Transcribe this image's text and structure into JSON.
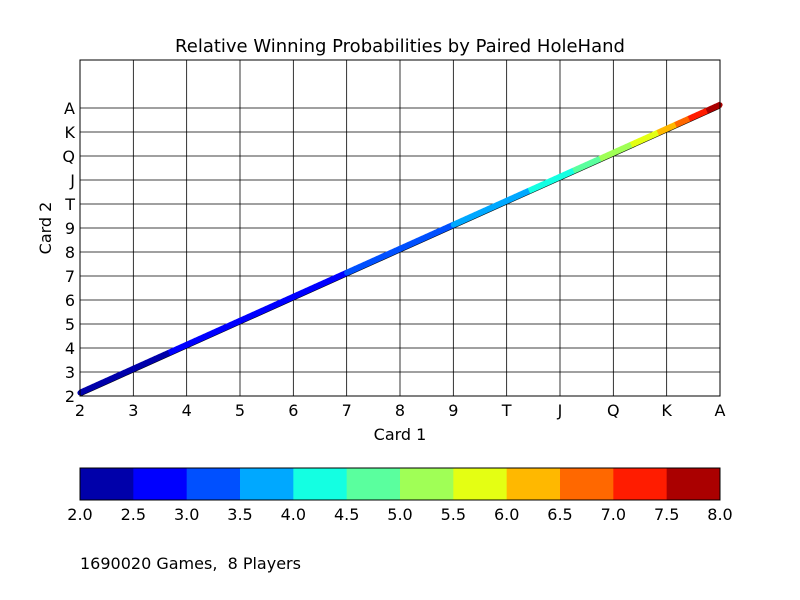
{
  "chart_data": {
    "type": "line",
    "title": "Relative Winning Probabilities by Paired HoleHand",
    "xlabel": "Card 1",
    "ylabel": "Card 2",
    "x_ticks": [
      "2",
      "3",
      "4",
      "5",
      "6",
      "7",
      "8",
      "9",
      "T",
      "J",
      "Q",
      "K",
      "A"
    ],
    "y_ticks": [
      "2",
      "3",
      "4",
      "5",
      "6",
      "7",
      "8",
      "9",
      "T",
      "J",
      "Q",
      "K",
      "A"
    ],
    "grid": true,
    "series": [
      {
        "points": [
          {
            "x": "2",
            "y": "2",
            "value": 2.0
          },
          {
            "x": "3",
            "y": "3",
            "value": 2.3
          },
          {
            "x": "4",
            "y": "4",
            "value": 2.6
          },
          {
            "x": "5",
            "y": "5",
            "value": 2.8
          },
          {
            "x": "6",
            "y": "6",
            "value": 2.9
          },
          {
            "x": "7",
            "y": "7",
            "value": 3.0
          },
          {
            "x": "8",
            "y": "8",
            "value": 3.2
          },
          {
            "x": "9",
            "y": "9",
            "value": 3.5
          },
          {
            "x": "T",
            "y": "T",
            "value": 3.8
          },
          {
            "x": "J",
            "y": "J",
            "value": 4.3
          },
          {
            "x": "Q",
            "y": "Q",
            "value": 5.2
          },
          {
            "x": "K",
            "y": "K",
            "value": 6.2
          },
          {
            "x": "A",
            "y": "A",
            "value": 8.0
          }
        ]
      }
    ],
    "colorbar": {
      "orientation": "horizontal",
      "range": [
        2.0,
        8.0
      ],
      "ticks": [
        "2.0",
        "2.5",
        "3.0",
        "3.5",
        "4.0",
        "4.5",
        "5.0",
        "5.5",
        "6.0",
        "6.5",
        "7.0",
        "7.5",
        "8.0"
      ],
      "colors": [
        "#0000aa",
        "#0000ff",
        "#0050ff",
        "#00a8ff",
        "#14ffe2",
        "#5aff9e",
        "#a0ff56",
        "#e4ff13",
        "#ffb800",
        "#ff6800",
        "#ff1c00",
        "#aa0000"
      ]
    }
  },
  "footer": {
    "note": "1690020 Games,  8 Players"
  }
}
